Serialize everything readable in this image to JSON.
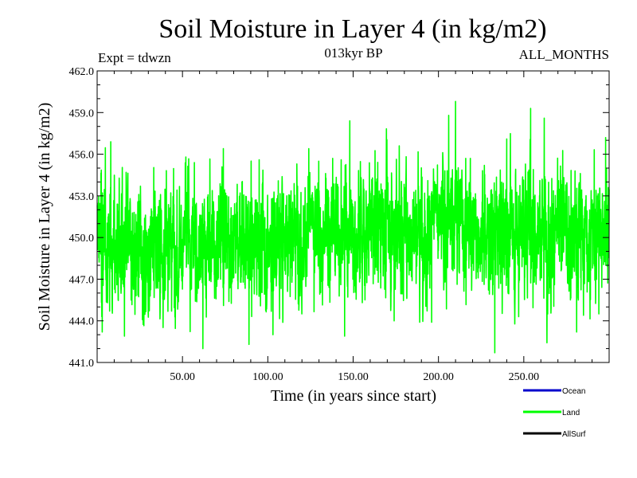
{
  "chart_data": {
    "type": "line",
    "title": "Soil Moisture in Layer 4 (in kg/m2)",
    "subtitle_left": "Expt = tdwzn",
    "subtitle_center": "013kyr BP",
    "subtitle_right": "ALL_MONTHS",
    "xlabel": "Time (in years since start)",
    "ylabel": "Soil Moisture in Layer 4 (in kg/m2)",
    "xlim": [
      0,
      300
    ],
    "ylim": [
      441.0,
      462.0
    ],
    "x_ticks": [
      50,
      100,
      150,
      200,
      250
    ],
    "x_tick_labels": [
      "50.00",
      "100.00",
      "150.00",
      "200.00",
      "250.00"
    ],
    "y_ticks": [
      441,
      444,
      447,
      450,
      453,
      456,
      459,
      462
    ],
    "y_tick_labels": [
      "441.0",
      "444.0",
      "447.0",
      "450.0",
      "453.0",
      "456.0",
      "459.0",
      "462.0"
    ],
    "legend_position": "bottom-right",
    "legend": [
      {
        "name": "Ocean",
        "color": "#0000cc"
      },
      {
        "name": "Land",
        "color": "#00ff00"
      },
      {
        "name": "AllSurf",
        "color": "#000000"
      }
    ],
    "series": [
      {
        "name": "Land",
        "color": "#00ff00",
        "monthly": true,
        "x_start": 0.08,
        "x_step": 0.0833,
        "anchors_x": [
          0,
          10,
          20,
          30,
          40,
          50,
          60,
          70,
          80,
          90,
          100,
          110,
          120,
          130,
          140,
          150,
          160,
          170,
          180,
          190,
          200,
          210,
          220,
          230,
          240,
          250,
          260,
          270,
          280,
          290,
          300
        ],
        "anchors_mean": [
          449.8,
          449.2,
          448.8,
          448.9,
          449.4,
          449.9,
          449.1,
          449.9,
          450.2,
          449.4,
          449.5,
          450.6,
          450.7,
          450.3,
          450.9,
          450.4,
          450.8,
          451.2,
          450.5,
          451.1,
          451.0,
          451.8,
          450.5,
          450.2,
          450.4,
          451.1,
          450.8,
          450.1,
          450.4,
          450.3,
          451.0
        ],
        "max_value": 459.8,
        "max_at_x": 210,
        "min_value": 441.7,
        "min_at_x": 233,
        "local_extremes": [
          {
            "x": 3,
            "y": 443.2
          },
          {
            "x": 8,
            "y": 456.9
          },
          {
            "x": 12,
            "y": 452.4
          },
          {
            "x": 16,
            "y": 442.9
          },
          {
            "x": 52,
            "y": 455.8
          },
          {
            "x": 57,
            "y": 455.4
          },
          {
            "x": 62,
            "y": 442.0
          },
          {
            "x": 74,
            "y": 456.4
          },
          {
            "x": 89,
            "y": 442.3
          },
          {
            "x": 95,
            "y": 455.6
          },
          {
            "x": 103,
            "y": 443.0
          },
          {
            "x": 117,
            "y": 455.3
          },
          {
            "x": 124,
            "y": 456.4
          },
          {
            "x": 143,
            "y": 455.6
          },
          {
            "x": 145,
            "y": 442.9
          },
          {
            "x": 148,
            "y": 458.4
          },
          {
            "x": 174,
            "y": 444.0
          },
          {
            "x": 177,
            "y": 456.6
          },
          {
            "x": 189,
            "y": 443.9
          },
          {
            "x": 196,
            "y": 443.9
          },
          {
            "x": 206,
            "y": 458.8
          },
          {
            "x": 210,
            "y": 459.8
          },
          {
            "x": 216,
            "y": 455.7
          },
          {
            "x": 233,
            "y": 441.7
          },
          {
            "x": 240,
            "y": 457.1
          },
          {
            "x": 247,
            "y": 444.3
          },
          {
            "x": 254,
            "y": 459.3
          },
          {
            "x": 262,
            "y": 458.6
          },
          {
            "x": 281,
            "y": 443.2
          },
          {
            "x": 285,
            "y": 444.4
          },
          {
            "x": 294,
            "y": 444.5
          },
          {
            "x": 298,
            "y": 457.2
          }
        ]
      }
    ]
  }
}
